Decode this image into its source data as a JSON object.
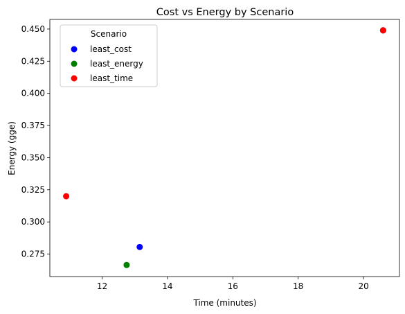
{
  "chart_data": {
    "type": "scatter",
    "title": "Cost vs Energy by Scenario",
    "xlabel": "Time (minutes)",
    "ylabel": "Energy (gge)",
    "xlim": [
      10.4,
      21.1
    ],
    "ylim": [
      0.2575,
      0.4575
    ],
    "xticks": [
      12,
      14,
      16,
      18,
      20
    ],
    "yticks": [
      0.275,
      0.3,
      0.325,
      0.35,
      0.375,
      0.4,
      0.425,
      0.45
    ],
    "ytick_labels": [
      "0.275",
      "0.300",
      "0.325",
      "0.350",
      "0.375",
      "0.400",
      "0.425",
      "0.450"
    ],
    "grid": false,
    "legend": {
      "title": "Scenario",
      "placement": "upper-left"
    },
    "series": [
      {
        "name": "least_cost",
        "color": "#0000ff",
        "points": [
          {
            "x": 13.15,
            "y": 0.2805
          },
          {
            "x": 20.6,
            "y": 0.449
          }
        ]
      },
      {
        "name": "least_energy",
        "color": "#008000",
        "points": [
          {
            "x": 12.75,
            "y": 0.2665
          },
          {
            "x": 20.6,
            "y": 0.449
          }
        ]
      },
      {
        "name": "least_time",
        "color": "#ff0000",
        "points": [
          {
            "x": 10.9,
            "y": 0.32
          },
          {
            "x": 20.6,
            "y": 0.449
          }
        ]
      }
    ]
  }
}
